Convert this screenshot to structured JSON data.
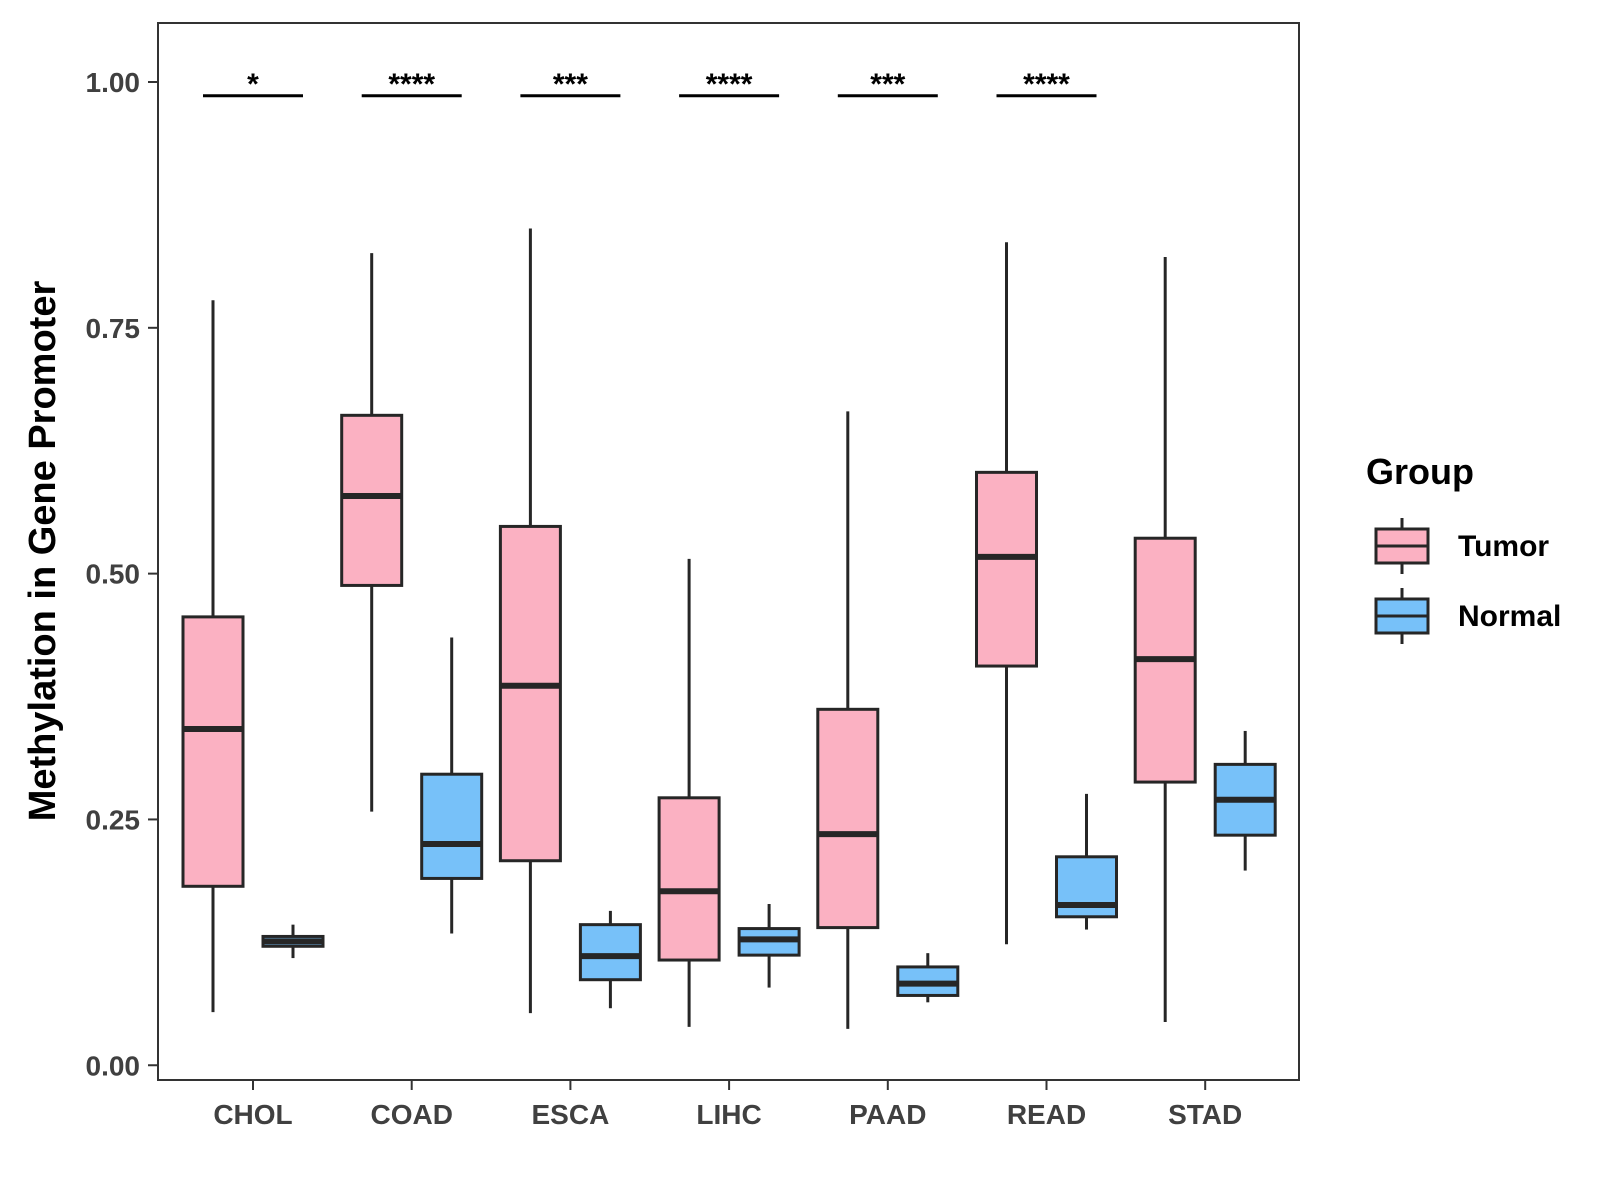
{
  "chart_data": {
    "type": "boxplot",
    "title": "",
    "xlabel": "",
    "ylabel": "Methylation in Gene Promoter",
    "ylim": [
      -0.015,
      1.06
    ],
    "y_ticks": [
      0.0,
      0.25,
      0.5,
      0.75,
      1.0
    ],
    "y_tick_labels": [
      "0.00",
      "0.25",
      "0.50",
      "0.75",
      "1.00"
    ],
    "categories": [
      "CHOL",
      "COAD",
      "ESCA",
      "LIHC",
      "PAAD",
      "READ",
      "STAD"
    ],
    "legend": {
      "title": "Group",
      "position": "right",
      "entries": [
        {
          "name": "Tumor",
          "color": "#FBB1C2"
        },
        {
          "name": "Normal",
          "color": "#77C1F9"
        }
      ]
    },
    "series": [
      {
        "name": "Tumor",
        "color": "#FBB1C2",
        "boxes": [
          {
            "whisker_low": 0.054,
            "q1": 0.182,
            "median": 0.342,
            "q3": 0.456,
            "whisker_high": 0.778
          },
          {
            "whisker_low": 0.258,
            "q1": 0.488,
            "median": 0.579,
            "q3": 0.661,
            "whisker_high": 0.826
          },
          {
            "whisker_low": 0.053,
            "q1": 0.208,
            "median": 0.386,
            "q3": 0.548,
            "whisker_high": 0.851
          },
          {
            "whisker_low": 0.039,
            "q1": 0.107,
            "median": 0.177,
            "q3": 0.272,
            "whisker_high": 0.515
          },
          {
            "whisker_low": 0.037,
            "q1": 0.14,
            "median": 0.235,
            "q3": 0.362,
            "whisker_high": 0.665
          },
          {
            "whisker_low": 0.123,
            "q1": 0.406,
            "median": 0.517,
            "q3": 0.603,
            "whisker_high": 0.837
          },
          {
            "whisker_low": 0.044,
            "q1": 0.288,
            "median": 0.413,
            "q3": 0.536,
            "whisker_high": 0.822
          }
        ]
      },
      {
        "name": "Normal",
        "color": "#77C1F9",
        "boxes": [
          {
            "whisker_low": 0.109,
            "q1": 0.121,
            "median": 0.126,
            "q3": 0.131,
            "whisker_high": 0.143
          },
          {
            "whisker_low": 0.134,
            "q1": 0.19,
            "median": 0.225,
            "q3": 0.296,
            "whisker_high": 0.435
          },
          {
            "whisker_low": 0.058,
            "q1": 0.087,
            "median": 0.111,
            "q3": 0.143,
            "whisker_high": 0.157
          },
          {
            "whisker_low": 0.079,
            "q1": 0.112,
            "median": 0.128,
            "q3": 0.139,
            "whisker_high": 0.164
          },
          {
            "whisker_low": 0.064,
            "q1": 0.071,
            "median": 0.083,
            "q3": 0.1,
            "whisker_high": 0.114
          },
          {
            "whisker_low": 0.138,
            "q1": 0.151,
            "median": 0.163,
            "q3": 0.212,
            "whisker_high": 0.276
          },
          {
            "whisker_low": 0.198,
            "q1": 0.234,
            "median": 0.27,
            "q3": 0.306,
            "whisker_high": 0.34
          }
        ]
      }
    ],
    "significance": [
      {
        "category": "CHOL",
        "label": "*",
        "y": 0.986
      },
      {
        "category": "COAD",
        "label": "****",
        "y": 0.986
      },
      {
        "category": "ESCA",
        "label": "***",
        "y": 0.986
      },
      {
        "category": "LIHC",
        "label": "****",
        "y": 0.986
      },
      {
        "category": "PAAD",
        "label": "***",
        "y": 0.986
      },
      {
        "category": "READ",
        "label": "****",
        "y": 0.986
      }
    ],
    "grid": false
  }
}
